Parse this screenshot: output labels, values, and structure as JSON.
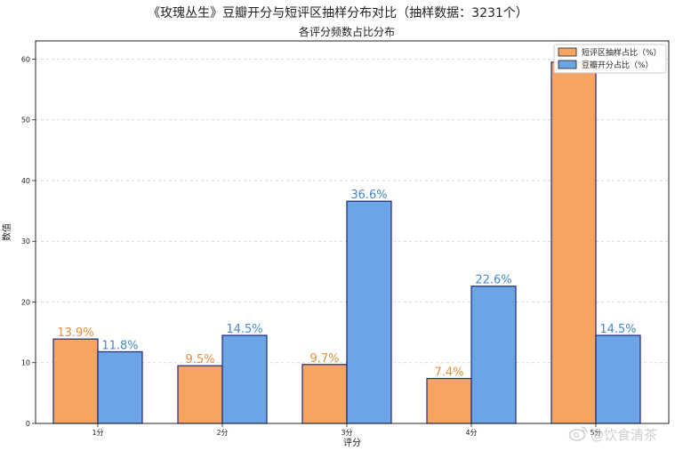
{
  "chart_data": {
    "type": "bar",
    "title": "《玫瑰丛生》豆瓣开分与短评区抽样分布对比（抽样数据：3231个）",
    "subtitle": "各评分频数占比分布",
    "xlabel": "评分",
    "ylabel": "数值",
    "categories": [
      "1分",
      "2分",
      "3分",
      "4分",
      "5分"
    ],
    "ylim": [
      0,
      63
    ],
    "yticks": [
      0,
      10,
      20,
      30,
      40,
      50,
      60
    ],
    "grid": "horizontal-dashed",
    "legend_position": "top-right",
    "series": [
      {
        "name": "短评区抽样占比（%）",
        "color": "#F5A463",
        "values": [
          13.9,
          9.5,
          9.7,
          7.4,
          59.5
        ],
        "labels": [
          "13.9%",
          "9.5%",
          "9.7%",
          "7.4%",
          ""
        ],
        "label_color": "#E48F3C"
      },
      {
        "name": "豆瓣开分占比（%）",
        "color": "#6CA5E6",
        "values": [
          11.8,
          14.5,
          36.6,
          22.6,
          14.5
        ],
        "labels": [
          "11.8%",
          "14.5%",
          "36.6%",
          "22.6%",
          "14.5%"
        ],
        "label_color": "#4A88C8"
      }
    ],
    "bar_edge_color": "#1a2a7a"
  },
  "watermark": {
    "text": "@饮食清茶",
    "icon": "weibo-logo-icon"
  }
}
